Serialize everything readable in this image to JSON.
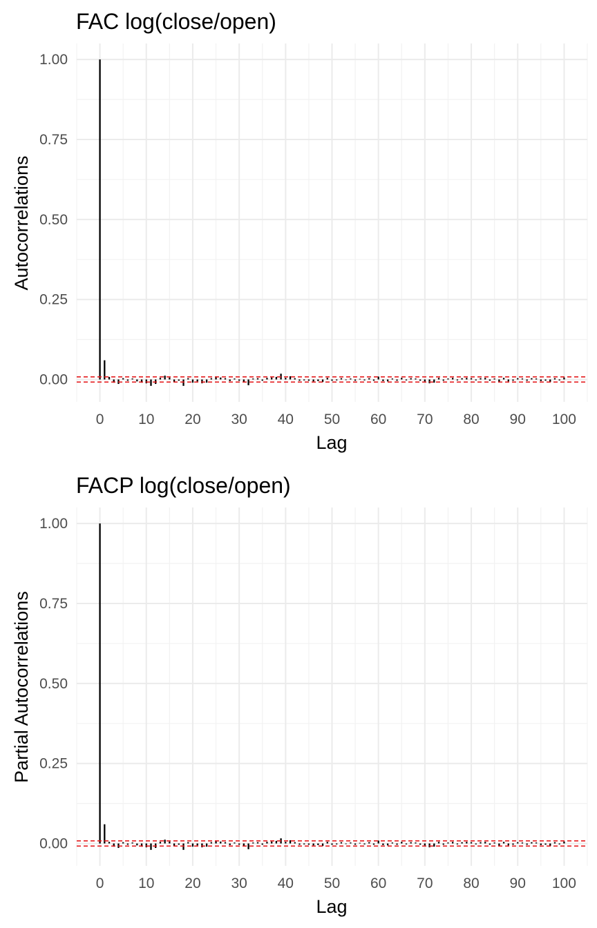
{
  "chart_data": [
    {
      "type": "bar",
      "title": "FAC log(close/open)",
      "xlabel": "Lag",
      "ylabel": "Autocorrelations",
      "x_ticks": [
        "0",
        "10",
        "20",
        "30",
        "40",
        "50",
        "60",
        "70",
        "80",
        "90",
        "100"
      ],
      "y_ticks": [
        "0.00",
        "0.25",
        "0.50",
        "0.75",
        "1.00"
      ],
      "xlim": [
        -5,
        105
      ],
      "ylim": [
        -0.07,
        1.05
      ],
      "grid": true,
      "confidence_band": [
        -0.008,
        0.008
      ],
      "band_color": "#e41a1c",
      "lags": [
        0,
        1,
        2,
        3,
        4,
        5,
        6,
        7,
        8,
        9,
        10,
        11,
        12,
        13,
        14,
        15,
        16,
        17,
        18,
        19,
        20,
        21,
        22,
        23,
        24,
        25,
        26,
        27,
        28,
        29,
        30,
        31,
        32,
        33,
        34,
        35,
        36,
        37,
        38,
        39,
        40,
        41,
        42,
        43,
        44,
        45,
        46,
        47,
        48,
        49,
        50,
        51,
        52,
        53,
        54,
        55,
        56,
        57,
        58,
        59,
        60,
        61,
        62,
        63,
        64,
        65,
        66,
        67,
        68,
        69,
        70,
        71,
        72,
        73,
        74,
        75,
        76,
        77,
        78,
        79,
        80,
        81,
        82,
        83,
        84,
        85,
        86,
        87,
        88,
        89,
        90,
        91,
        92,
        93,
        94,
        95,
        96,
        97,
        98,
        99,
        100
      ],
      "values": [
        1.0,
        0.06,
        0.008,
        -0.01,
        -0.014,
        0.004,
        -0.004,
        0.003,
        -0.006,
        -0.01,
        -0.012,
        -0.02,
        -0.014,
        0.005,
        0.012,
        0.006,
        -0.008,
        -0.004,
        -0.02,
        0.004,
        -0.01,
        -0.006,
        -0.012,
        -0.01,
        0.004,
        0.008,
        0.006,
        0.004,
        -0.005,
        0.003,
        -0.004,
        -0.009,
        -0.018,
        0.003,
        0.004,
        -0.004,
        0.005,
        0.006,
        0.008,
        0.018,
        0.005,
        0.01,
        0.004,
        -0.004,
        -0.003,
        -0.004,
        -0.006,
        -0.005,
        -0.008,
        0.005,
        -0.004,
        -0.003,
        0.004,
        -0.002,
        0.003,
        -0.004,
        0.002,
        -0.003,
        0.004,
        -0.004,
        0.009,
        -0.005,
        -0.006,
        0.003,
        -0.004,
        0.005,
        -0.003,
        0.004,
        0.003,
        -0.004,
        -0.006,
        -0.012,
        -0.01,
        0.005,
        -0.004,
        0.003,
        0.005,
        -0.003,
        0.004,
        0.005,
        0.004,
        -0.003,
        0.004,
        0.005,
        -0.004,
        0.003,
        -0.008,
        0.005,
        -0.006,
        -0.004,
        0.004,
        0.003,
        -0.004,
        0.004,
        0.003,
        -0.005,
        -0.004,
        -0.008,
        0.004,
        -0.003,
        0.006
      ]
    },
    {
      "type": "bar",
      "title": "FACP log(close/open)",
      "xlabel": "Lag",
      "ylabel": "Partial Autocorrelations",
      "x_ticks": [
        "0",
        "10",
        "20",
        "30",
        "40",
        "50",
        "60",
        "70",
        "80",
        "90",
        "100"
      ],
      "y_ticks": [
        "0.00",
        "0.25",
        "0.50",
        "0.75",
        "1.00"
      ],
      "xlim": [
        -5,
        105
      ],
      "ylim": [
        -0.07,
        1.05
      ],
      "grid": true,
      "confidence_band": [
        -0.008,
        0.008
      ],
      "band_color": "#e41a1c",
      "lags": [
        0,
        1,
        2,
        3,
        4,
        5,
        6,
        7,
        8,
        9,
        10,
        11,
        12,
        13,
        14,
        15,
        16,
        17,
        18,
        19,
        20,
        21,
        22,
        23,
        24,
        25,
        26,
        27,
        28,
        29,
        30,
        31,
        32,
        33,
        34,
        35,
        36,
        37,
        38,
        39,
        40,
        41,
        42,
        43,
        44,
        45,
        46,
        47,
        48,
        49,
        50,
        51,
        52,
        53,
        54,
        55,
        56,
        57,
        58,
        59,
        60,
        61,
        62,
        63,
        64,
        65,
        66,
        67,
        68,
        69,
        70,
        71,
        72,
        73,
        74,
        75,
        76,
        77,
        78,
        79,
        80,
        81,
        82,
        83,
        84,
        85,
        86,
        87,
        88,
        89,
        90,
        91,
        92,
        93,
        94,
        95,
        96,
        97,
        98,
        99,
        100
      ],
      "values": [
        1.0,
        0.06,
        0.005,
        -0.01,
        -0.014,
        0.004,
        -0.004,
        0.003,
        -0.006,
        -0.01,
        -0.012,
        -0.02,
        -0.014,
        0.005,
        0.012,
        0.006,
        -0.008,
        -0.004,
        -0.02,
        0.004,
        -0.01,
        -0.006,
        -0.012,
        -0.01,
        0.004,
        0.008,
        0.006,
        0.004,
        -0.005,
        0.003,
        -0.004,
        -0.009,
        -0.018,
        0.003,
        0.004,
        -0.004,
        0.005,
        0.006,
        0.008,
        0.016,
        0.005,
        0.01,
        0.004,
        -0.004,
        -0.003,
        -0.004,
        -0.006,
        -0.005,
        -0.008,
        0.005,
        -0.004,
        -0.003,
        0.004,
        -0.002,
        0.003,
        -0.004,
        0.002,
        -0.003,
        0.004,
        -0.004,
        0.009,
        -0.005,
        -0.006,
        0.003,
        -0.004,
        0.005,
        -0.003,
        0.004,
        0.003,
        -0.004,
        -0.006,
        -0.012,
        -0.01,
        0.005,
        -0.004,
        0.003,
        0.005,
        -0.003,
        0.004,
        0.005,
        0.004,
        -0.003,
        0.004,
        0.005,
        -0.004,
        0.003,
        -0.008,
        0.005,
        -0.006,
        -0.004,
        0.004,
        0.003,
        -0.004,
        0.004,
        0.003,
        -0.005,
        -0.004,
        -0.008,
        0.004,
        -0.003,
        0.006
      ]
    }
  ]
}
